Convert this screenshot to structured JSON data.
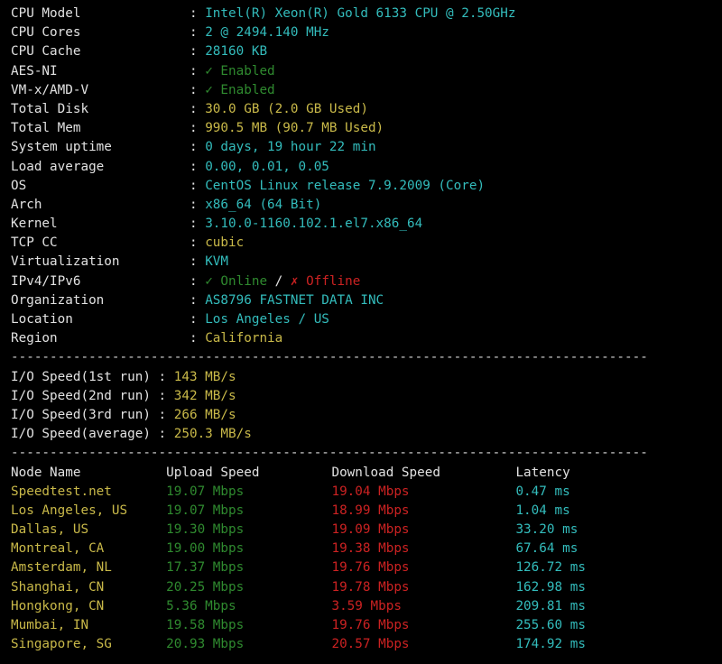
{
  "colors": {
    "label": "#e2e2e2",
    "cyan": "#33bcbc",
    "green": "#2f8a2f",
    "yellow": "#c9b949",
    "red": "#cc2222"
  },
  "system_info": [
    {
      "label": "CPU Model",
      "value": "Intel(R) Xeon(R) Gold 6133 CPU @ 2.50GHz",
      "color": "cyan"
    },
    {
      "label": "CPU Cores",
      "value": "2 @ 2494.140 MHz",
      "color": "cyan"
    },
    {
      "label": "CPU Cache",
      "value": "28160 KB",
      "color": "cyan"
    },
    {
      "label": "AES-NI",
      "value": "✓ Enabled",
      "color": "green"
    },
    {
      "label": "VM-x/AMD-V",
      "value": "✓ Enabled",
      "color": "green"
    },
    {
      "label": "Total Disk",
      "value": "30.0 GB (2.0 GB Used)",
      "color": "yellow"
    },
    {
      "label": "Total Mem",
      "value": "990.5 MB (90.7 MB Used)",
      "color": "yellow"
    },
    {
      "label": "System uptime",
      "value": "0 days, 19 hour 22 min",
      "color": "cyan"
    },
    {
      "label": "Load average",
      "value": "0.00, 0.01, 0.05",
      "color": "cyan"
    },
    {
      "label": "OS",
      "value": "CentOS Linux release 7.9.2009 (Core)",
      "color": "cyan"
    },
    {
      "label": "Arch",
      "value": "x86_64 (64 Bit)",
      "color": "cyan"
    },
    {
      "label": "Kernel",
      "value": "3.10.0-1160.102.1.el7.x86_64",
      "color": "cyan"
    },
    {
      "label": "TCP CC",
      "value": "cubic",
      "color": "yellow"
    },
    {
      "label": "Virtualization",
      "value": "KVM",
      "color": "cyan"
    },
    {
      "label": "IPv4/IPv6",
      "parts": [
        {
          "text": "✓ Online",
          "color": "green"
        },
        {
          "text": " / ",
          "color": "white"
        },
        {
          "text": "✗ Offline",
          "color": "red"
        }
      ]
    },
    {
      "label": "Organization",
      "value": "AS8796 FASTNET DATA INC",
      "color": "cyan"
    },
    {
      "label": "Location",
      "value": "Los Angeles / US",
      "color": "cyan"
    },
    {
      "label": "Region",
      "value": "California",
      "color": "yellow"
    }
  ],
  "separator": "----------------------------------------------------------------------------------",
  "colon": ": ",
  "io_speed": [
    {
      "label": "I/O Speed(1st run)",
      "value": "143 MB/s"
    },
    {
      "label": "I/O Speed(2nd run)",
      "value": "342 MB/s"
    },
    {
      "label": "I/O Speed(3rd run)",
      "value": "266 MB/s"
    },
    {
      "label": "I/O Speed(average)",
      "value": "250.3 MB/s"
    }
  ],
  "speedtest": {
    "headers": [
      "Node Name",
      "Upload Speed",
      "Download Speed",
      "Latency"
    ],
    "rows": [
      [
        "Speedtest.net",
        "19.07 Mbps",
        "19.04 Mbps",
        "0.47 ms"
      ],
      [
        "Los Angeles, US",
        "19.07 Mbps",
        "18.99 Mbps",
        "1.04 ms"
      ],
      [
        "Dallas, US",
        "19.30 Mbps",
        "19.09 Mbps",
        "33.20 ms"
      ],
      [
        "Montreal, CA",
        "19.00 Mbps",
        "19.38 Mbps",
        "67.64 ms"
      ],
      [
        "Amsterdam, NL",
        "17.37 Mbps",
        "19.76 Mbps",
        "126.72 ms"
      ],
      [
        "Shanghai, CN",
        "20.25 Mbps",
        "19.78 Mbps",
        "162.98 ms"
      ],
      [
        "Hongkong, CN",
        "5.36 Mbps",
        "3.59 Mbps",
        "209.81 ms"
      ],
      [
        "Mumbai, IN",
        "19.58 Mbps",
        "19.76 Mbps",
        "255.60 ms"
      ],
      [
        "Singapore, SG",
        "20.93 Mbps",
        "20.57 Mbps",
        "174.92 ms"
      ]
    ]
  }
}
